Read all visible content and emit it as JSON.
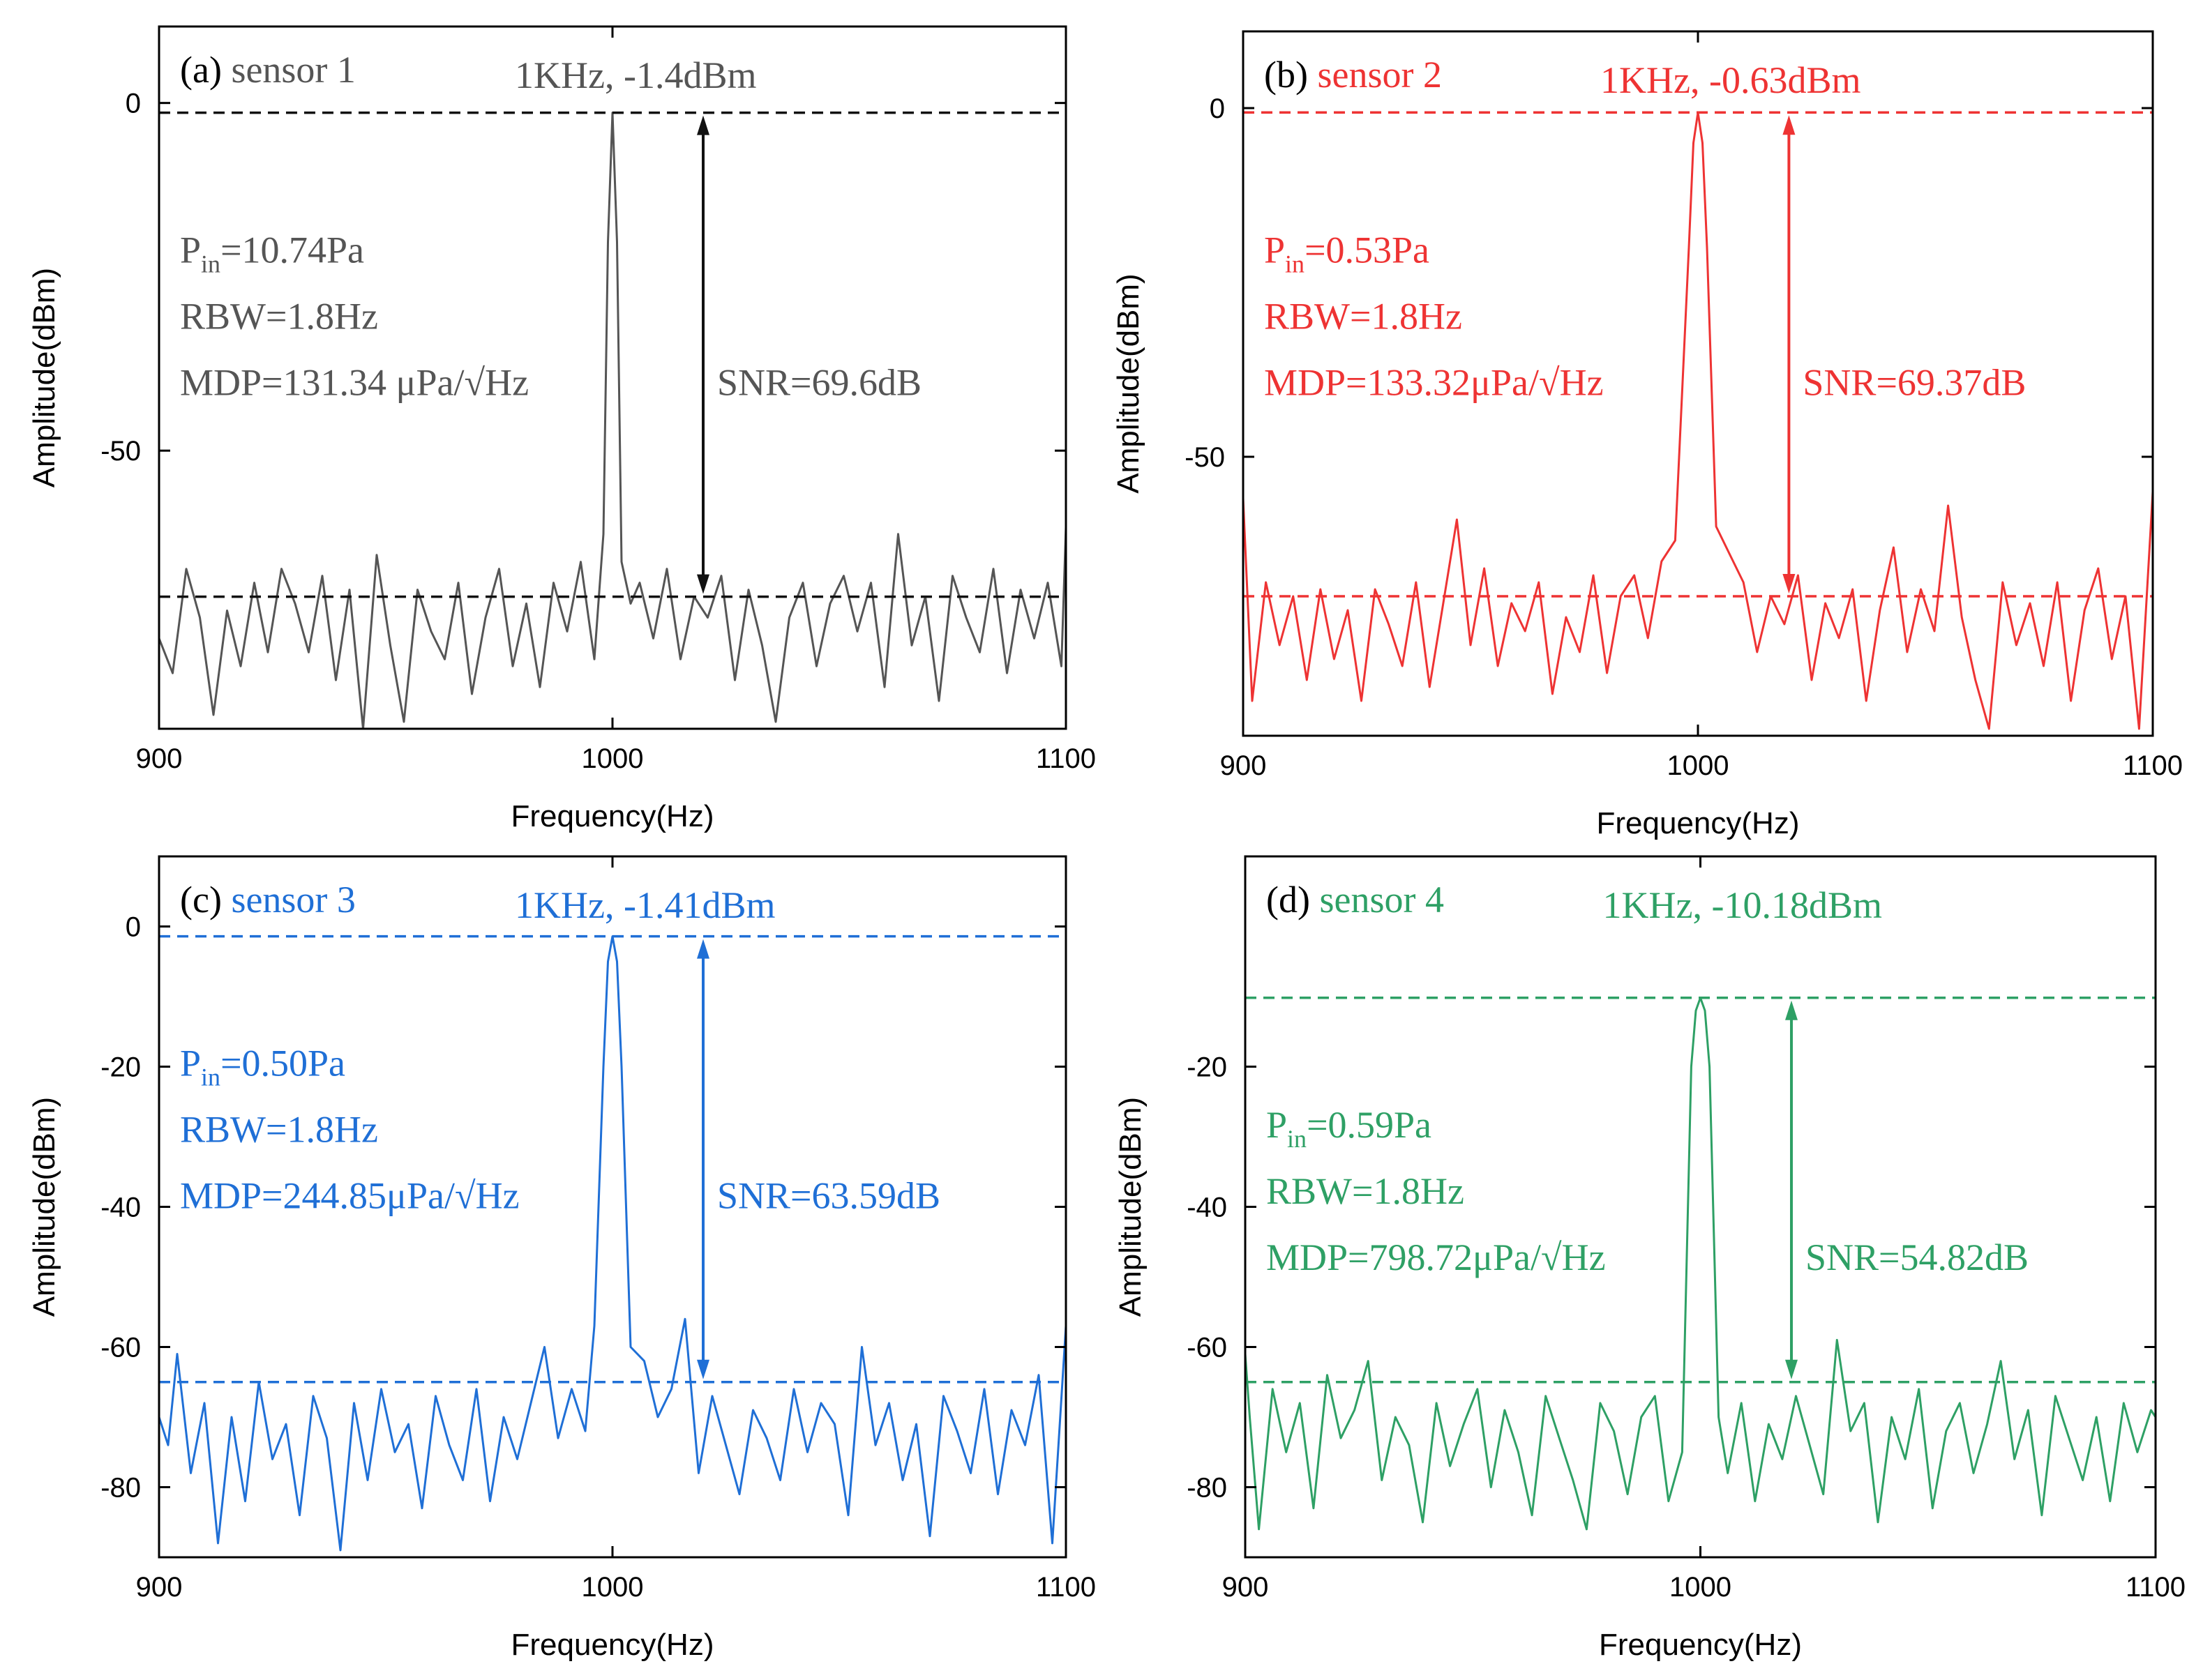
{
  "chart_data": [
    {
      "type": "line",
      "panel_label": "(a)",
      "sensor": "sensor 1",
      "color": "#555555",
      "xlabel": "Frequency(Hz)",
      "ylabel": "Amplitude(dBm)",
      "xlim": [
        900,
        1100
      ],
      "ylim": [
        -90,
        11
      ],
      "xticks": [
        900,
        1000,
        1100
      ],
      "xtick_labels": [
        "900",
        "1000",
        "1100"
      ],
      "yticks": [
        0,
        -50
      ],
      "ytick_labels": [
        "0",
        "-50"
      ],
      "peak": {
        "x": 1000,
        "y": -1.4,
        "label": "1KHz, -1.4dBm"
      },
      "noise_floor": -71,
      "arrow_x": 1020,
      "annotations": {
        "pin_prefix": "P",
        "pin_sub": "in",
        "pin_value": "=10.74Pa",
        "rbw": "RBW=1.8Hz",
        "mdp": "MDP=131.34 μPa/√Hz",
        "snr": "SNR=69.6dB"
      },
      "x": [
        900,
        903,
        906,
        909,
        912,
        915,
        918,
        921,
        924,
        927,
        930,
        933,
        936,
        939,
        942,
        945,
        948,
        951,
        954,
        957,
        960,
        963,
        966,
        969,
        972,
        975,
        978,
        981,
        984,
        987,
        990,
        993,
        996,
        998,
        999,
        1000,
        1001,
        1002,
        1004,
        1006,
        1009,
        1012,
        1015,
        1018,
        1021,
        1024,
        1027,
        1030,
        1033,
        1036,
        1039,
        1042,
        1045,
        1048,
        1051,
        1054,
        1057,
        1060,
        1063,
        1066,
        1069,
        1072,
        1075,
        1078,
        1081,
        1084,
        1087,
        1090,
        1093,
        1096,
        1099,
        1100
      ],
      "y": [
        -77,
        -82,
        -67,
        -74,
        -88,
        -73,
        -81,
        -69,
        -79,
        -67,
        -72,
        -79,
        -68,
        -83,
        -70,
        -90,
        -65,
        -78,
        -89,
        -70,
        -76,
        -80,
        -69,
        -85,
        -74,
        -67,
        -81,
        -72,
        -84,
        -69,
        -76,
        -66,
        -80,
        -62,
        -20,
        -1.4,
        -20,
        -66,
        -72,
        -69,
        -77,
        -67,
        -80,
        -71,
        -74,
        -68,
        -83,
        -70,
        -78,
        -89,
        -74,
        -69,
        -81,
        -72,
        -68,
        -76,
        -69,
        -84,
        -62,
        -78,
        -71,
        -86,
        -68,
        -74,
        -79,
        -67,
        -82,
        -70,
        -77,
        -69,
        -81,
        -61
      ]
    },
    {
      "type": "line",
      "panel_label": "(b)",
      "sensor": "sensor 2",
      "color": "#ee3333",
      "xlabel": "Frequency(Hz)",
      "ylabel": "Amplitude(dBm)",
      "xlim": [
        900,
        1100
      ],
      "ylim": [
        -90,
        11
      ],
      "xticks": [
        900,
        1000,
        1100
      ],
      "xtick_labels": [
        "900",
        "1000",
        "1100"
      ],
      "yticks": [
        0,
        -50
      ],
      "ytick_labels": [
        "0",
        "-50"
      ],
      "peak": {
        "x": 1000,
        "y": -0.63,
        "label": "1KHz, -0.63dBm"
      },
      "noise_floor": -70,
      "arrow_x": 1020,
      "annotations": {
        "pin_prefix": "P",
        "pin_sub": "in",
        "pin_value": "=0.53Pa",
        "rbw": "RBW=1.8Hz",
        "mdp": "MDP=133.32μPa/√Hz",
        "snr": "SNR=69.37dB"
      },
      "x": [
        900,
        902,
        905,
        908,
        911,
        914,
        917,
        920,
        923,
        926,
        929,
        932,
        935,
        938,
        941,
        944,
        947,
        950,
        953,
        956,
        959,
        962,
        965,
        968,
        971,
        974,
        977,
        980,
        983,
        986,
        989,
        992,
        995,
        998,
        999,
        1000,
        1001,
        1002,
        1004,
        1007,
        1010,
        1013,
        1016,
        1019,
        1022,
        1025,
        1028,
        1031,
        1034,
        1037,
        1040,
        1043,
        1046,
        1049,
        1052,
        1055,
        1058,
        1061,
        1064,
        1067,
        1070,
        1073,
        1076,
        1079,
        1082,
        1085,
        1088,
        1091,
        1094,
        1097,
        1100
      ],
      "y": [
        -56,
        -85,
        -68,
        -77,
        -70,
        -82,
        -69,
        -79,
        -72,
        -85,
        -69,
        -74,
        -80,
        -68,
        -83,
        -71,
        -59,
        -77,
        -66,
        -80,
        -71,
        -75,
        -68,
        -84,
        -73,
        -78,
        -67,
        -81,
        -70,
        -67,
        -76,
        -65,
        -62,
        -20,
        -5,
        -0.63,
        -5,
        -20,
        -60,
        -64,
        -68,
        -78,
        -70,
        -74,
        -67,
        -82,
        -71,
        -76,
        -69,
        -85,
        -72,
        -63,
        -78,
        -69,
        -75,
        -57,
        -73,
        -82,
        -89,
        -68,
        -77,
        -71,
        -80,
        -68,
        -85,
        -72,
        -66,
        -79,
        -70,
        -89,
        -55
      ]
    },
    {
      "type": "line",
      "panel_label": "(c)",
      "sensor": "sensor 3",
      "color": "#1f6fd6",
      "xlabel": "Frequency(Hz)",
      "ylabel": "Amplitude(dBm)",
      "xlim": [
        900,
        1100
      ],
      "ylim": [
        -90,
        10
      ],
      "xticks": [
        900,
        1000,
        1100
      ],
      "xtick_labels": [
        "900",
        "1000",
        "1100"
      ],
      "yticks": [
        0,
        -20,
        -40,
        -60,
        -80
      ],
      "ytick_labels": [
        "0",
        "-20",
        "-40",
        "-60",
        "-80"
      ],
      "peak": {
        "x": 1000,
        "y": -1.41,
        "label": "1KHz, -1.41dBm"
      },
      "noise_floor": -65,
      "arrow_x": 1020,
      "annotations": {
        "pin_prefix": "P",
        "pin_sub": "in",
        "pin_value": "=0.50Pa",
        "rbw": "RBW=1.8Hz",
        "mdp": "MDP=244.85μPa/√Hz",
        "snr": "SNR=63.59dB"
      },
      "x": [
        900,
        902,
        904,
        907,
        910,
        913,
        916,
        919,
        922,
        925,
        928,
        931,
        934,
        937,
        940,
        943,
        946,
        949,
        952,
        955,
        958,
        961,
        964,
        967,
        970,
        973,
        976,
        979,
        982,
        985,
        988,
        991,
        994,
        996,
        998,
        999,
        1000,
        1001,
        1002,
        1004,
        1007,
        1010,
        1013,
        1016,
        1019,
        1022,
        1025,
        1028,
        1031,
        1034,
        1037,
        1040,
        1043,
        1046,
        1049,
        1052,
        1055,
        1058,
        1061,
        1064,
        1067,
        1070,
        1073,
        1076,
        1079,
        1082,
        1085,
        1088,
        1091,
        1094,
        1097,
        1100
      ],
      "y": [
        -70,
        -74,
        -61,
        -78,
        -68,
        -88,
        -70,
        -82,
        -65,
        -76,
        -71,
        -84,
        -67,
        -73,
        -89,
        -68,
        -79,
        -66,
        -75,
        -71,
        -83,
        -67,
        -74,
        -79,
        -66,
        -82,
        -70,
        -76,
        -68,
        -60,
        -73,
        -66,
        -72,
        -57,
        -20,
        -5,
        -1.41,
        -5,
        -20,
        -60,
        -62,
        -70,
        -66,
        -56,
        -78,
        -67,
        -74,
        -81,
        -69,
        -73,
        -79,
        -66,
        -75,
        -68,
        -71,
        -84,
        -60,
        -74,
        -68,
        -79,
        -71,
        -87,
        -67,
        -72,
        -78,
        -66,
        -81,
        -69,
        -74,
        -64,
        -88,
        -57
      ]
    },
    {
      "type": "line",
      "panel_label": "(d)",
      "sensor": "sensor 4",
      "color": "#2ea065",
      "xlabel": "Frequency(Hz)",
      "ylabel": "Amplitude(dBm)",
      "xlim": [
        900,
        1100
      ],
      "ylim": [
        -90,
        10
      ],
      "xticks": [
        900,
        1000,
        1100
      ],
      "xtick_labels": [
        "900",
        "1000",
        "1100"
      ],
      "yticks": [
        -20,
        -40,
        -60,
        -80
      ],
      "ytick_labels": [
        "-20",
        "-40",
        "-60",
        "-80"
      ],
      "peak": {
        "x": 1000,
        "y": -10.18,
        "label": "1KHz, -10.18dBm"
      },
      "noise_floor": -65,
      "arrow_x": 1020,
      "annotations": {
        "pin_prefix": "P",
        "pin_sub": "in",
        "pin_value": "=0.59Pa",
        "rbw": "RBW=1.8Hz",
        "mdp": "MDP=798.72μPa/√Hz",
        "snr": "SNR=54.82dB"
      },
      "x": [
        900,
        901,
        903,
        906,
        909,
        912,
        915,
        918,
        921,
        924,
        927,
        930,
        933,
        936,
        939,
        942,
        945,
        948,
        951,
        954,
        957,
        960,
        963,
        966,
        969,
        972,
        975,
        978,
        981,
        984,
        987,
        990,
        993,
        996,
        998,
        999,
        1000,
        1001,
        1002,
        1004,
        1006,
        1009,
        1012,
        1015,
        1018,
        1021,
        1024,
        1027,
        1030,
        1033,
        1036,
        1039,
        1042,
        1045,
        1048,
        1051,
        1054,
        1057,
        1060,
        1063,
        1066,
        1069,
        1072,
        1075,
        1078,
        1081,
        1084,
        1087,
        1090,
        1093,
        1096,
        1099,
        1100
      ],
      "y": [
        -61,
        -70,
        -86,
        -66,
        -75,
        -68,
        -83,
        -64,
        -73,
        -69,
        -62,
        -79,
        -70,
        -74,
        -85,
        -68,
        -77,
        -71,
        -66,
        -80,
        -69,
        -75,
        -84,
        -67,
        -73,
        -79,
        -86,
        -68,
        -72,
        -81,
        -70,
        -67,
        -82,
        -75,
        -20,
        -12,
        -10.18,
        -12,
        -20,
        -70,
        -78,
        -68,
        -82,
        -71,
        -76,
        -67,
        -74,
        -81,
        -59,
        -72,
        -68,
        -85,
        -70,
        -76,
        -66,
        -83,
        -72,
        -68,
        -78,
        -71,
        -62,
        -76,
        -69,
        -84,
        -67,
        -73,
        -79,
        -70,
        -82,
        -68,
        -75,
        -69,
        -70
      ]
    }
  ]
}
